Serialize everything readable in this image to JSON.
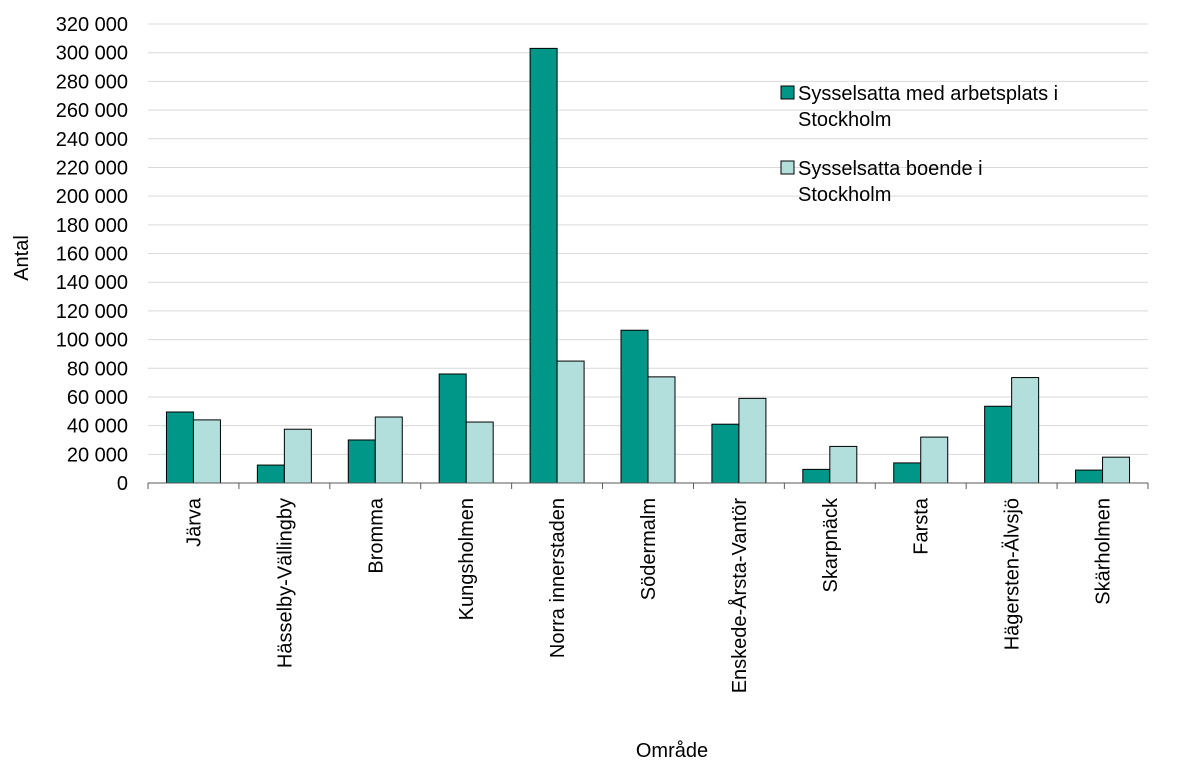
{
  "chart_data": {
    "type": "bar",
    "xlabel": "Område",
    "ylabel": "Antal",
    "ylim": [
      0,
      320000
    ],
    "ytick_step": 20000,
    "ytick_labels": [
      "0",
      "20 000",
      "40 000",
      "60 000",
      "80 000",
      "100 000",
      "120 000",
      "140 000",
      "160 000",
      "180 000",
      "200 000",
      "220 000",
      "240 000",
      "260 000",
      "280 000",
      "300 000",
      "320 000"
    ],
    "grid": true,
    "legend_position": "top-right",
    "categories": [
      "Järva",
      "Hässelby-Vällingby",
      "Bromma",
      "Kungsholmen",
      "Norra innerstaden",
      "Södermalm",
      "Enskede-Årsta-Vantör",
      "Skarpnäck",
      "Farsta",
      "Hägersten-Älvsjö",
      "Skärholmen"
    ],
    "series": [
      {
        "name": "Sysselsatta med arbetsplats i Stockholm",
        "legend_lines": [
          "Sysselsatta med arbetsplats i",
          "Stockholm"
        ],
        "color": "#009688",
        "values": [
          49500,
          12500,
          30000,
          76000,
          303000,
          106500,
          41000,
          9500,
          14000,
          53500,
          9000
        ]
      },
      {
        "name": "Sysselsatta boende i Stockholm",
        "legend_lines": [
          "Sysselsatta boende i",
          "Stockholm"
        ],
        "color": "#b2dfdb",
        "values": [
          44000,
          37500,
          46000,
          42500,
          85000,
          74000,
          59000,
          25500,
          32000,
          73500,
          18000
        ]
      }
    ]
  }
}
